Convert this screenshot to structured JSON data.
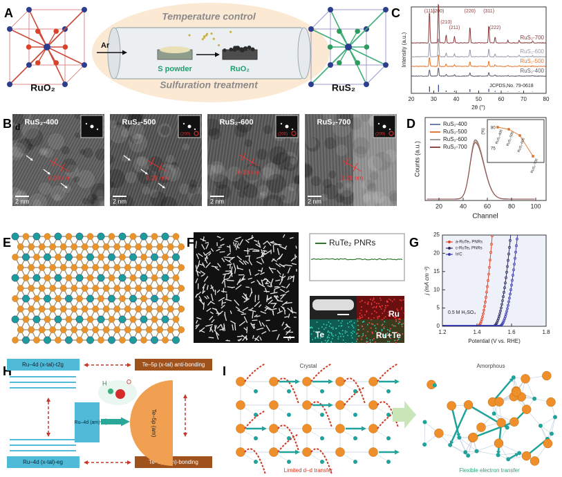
{
  "panels": {
    "a": {
      "label": "A",
      "ar": "Ar",
      "top_caption": "Temperature control",
      "bottom_caption": "Sulfuration treatment",
      "s_powder": "S powder",
      "boat_material": "RuO₂",
      "left_material": "RuO₂",
      "right_material": "RuS₂"
    },
    "b": {
      "label": "B",
      "corner": "d",
      "images": [
        {
          "title": "RuS₂-400",
          "scale": "2 nm",
          "spacing": "0.28 nm"
        },
        {
          "title": "RuS₂-500",
          "scale": "2 nm",
          "spacing": "0.29 nm",
          "fft": "(200)"
        },
        {
          "title": "RuS₂-600",
          "scale": "2 nm",
          "spacing": "0.28 nm",
          "fft": "(200)"
        },
        {
          "title": "RuS₂-700",
          "scale": "2 nm",
          "spacing": "0.28 nm",
          "fft": "(200)"
        }
      ]
    },
    "c": {
      "label": "C",
      "y_label": "Intensity (a.u.)",
      "x_label": "2θ (°)",
      "x_ticks": [
        "20",
        "30",
        "40",
        "50",
        "60",
        "70",
        "80"
      ],
      "peaks": [
        "(111)",
        "(200)",
        "(210)",
        "(211)",
        "(220)",
        "(311)",
        "(222)"
      ],
      "series": [
        "RuS₂-700",
        "RuS₂-600",
        "RuS₂-500",
        "RuS₂-400"
      ],
      "reference": "JCPDS,No. 79-0618"
    },
    "d": {
      "label": "D",
      "y_label": "Counts (a.u.)",
      "x_label": "Channel",
      "x_ticks": [
        "20",
        "40",
        "60",
        "80",
        "100"
      ],
      "legend": [
        "RuS₂-400",
        "RuS₂-500",
        "RuS₂-600",
        "RuS₂-700"
      ],
      "inset_y_label": "(%)",
      "inset_y_ticks": [
        "80",
        "75"
      ],
      "inset_labels": [
        "RuS₂-400",
        "RuS₂-500",
        "RuS₂-600",
        "RuS₂-700"
      ]
    },
    "e": {
      "label": "E"
    },
    "f": {
      "label": "F",
      "legend": "RuTe₂ PNRs",
      "maps": [
        "Ru",
        "Te",
        "Ru+Te"
      ]
    },
    "g": {
      "label": "G",
      "y_label": "j (mA cm⁻²)",
      "x_label": "Potential (V vs. RHE)",
      "x_ticks": [
        "1.2",
        "1.4",
        "1.6",
        "1.8"
      ],
      "y_ticks": [
        "0",
        "5",
        "10",
        "15",
        "20",
        "25"
      ],
      "legend": [
        "a-RuTe₂ PNRs",
        "c-RuTe₂ PNRs",
        "Ir/C"
      ],
      "electrolyte": "0.5 M H₂SO₄"
    },
    "h": {
      "label": "H",
      "top_left": "Ru–4d (x-tal)-t2g",
      "top_right": "Te–5p (x-tal) anti-bonding",
      "middle_left": "Ru–4d (am)",
      "middle_right": "Te–5p (am)",
      "bottom_left": "Ru–4d (x-tal)-eg",
      "bottom_right": "Te–5p (am)-bonding",
      "atoms": [
        "H",
        "O"
      ]
    },
    "i": {
      "label": "I",
      "left_title": "Crystal",
      "left_caption": "Limited d–d transfer",
      "right_title": "Amorphous",
      "right_caption": "Flexible electron transfer"
    }
  }
}
